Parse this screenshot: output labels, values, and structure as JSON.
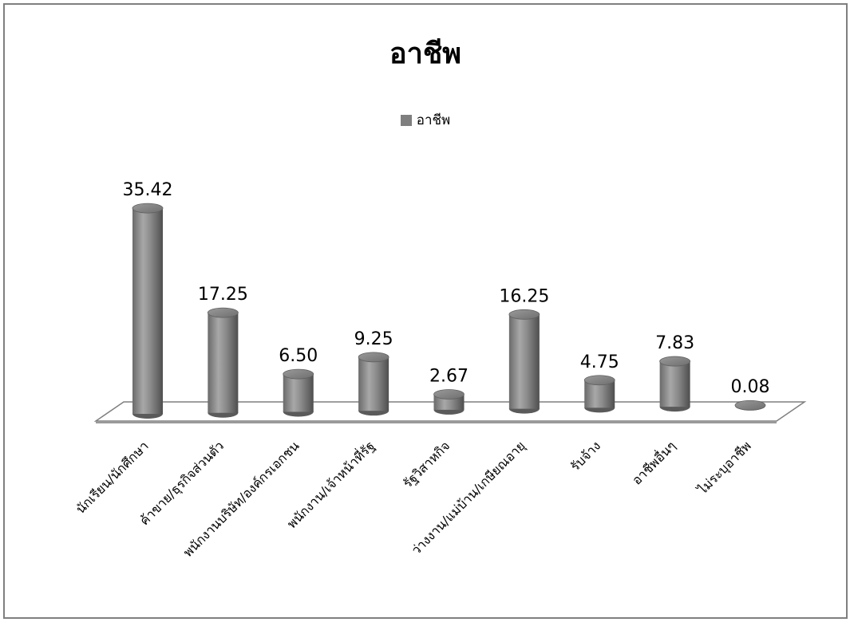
{
  "chart_data": {
    "type": "bar",
    "title": "อาชีพ",
    "legend": {
      "position": "top",
      "entries": [
        "อาชีพ"
      ]
    },
    "categories": [
      "นักเรียน/นักศึกษา",
      "ค้าขาย/ธุรกิจส่วนตัว",
      "พนักงานบริษัท/องค์กรเอกชน",
      "พนักงาน/เจ้าหน้าที่รัฐ",
      "รัฐวิสาหกิจ",
      "ว่างงาน/แม่บ้าน/เกษียณอายุ",
      "รับจ้าง",
      "อาชีพอื่นๆ",
      "ไม่ระบุอาชีพ"
    ],
    "series": [
      {
        "name": "อาชีพ",
        "values": [
          35.42,
          17.25,
          6.5,
          9.25,
          2.67,
          16.25,
          4.75,
          7.83,
          0.08
        ],
        "labels": [
          "35.42",
          "17.25",
          "6.50",
          "9.25",
          "2.67",
          "16.25",
          "4.75",
          "7.83",
          "0.08"
        ]
      }
    ],
    "ylim": [
      0,
      40
    ],
    "grid": false,
    "colors": {
      "bar": "#808080",
      "floor": "#ffffff",
      "floor_edge": "#7f7f7f"
    }
  }
}
